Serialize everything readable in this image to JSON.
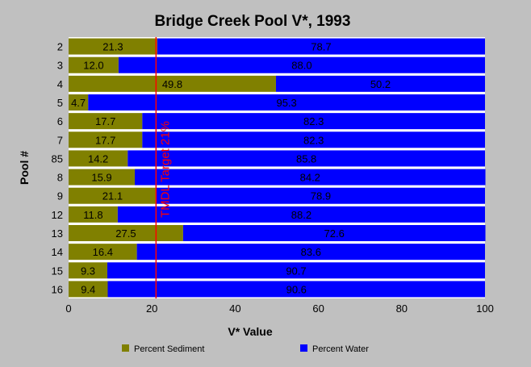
{
  "chart_data": {
    "type": "bar",
    "orientation": "horizontal",
    "stacked": true,
    "title": "Bridge Creek Pool V*, 1993",
    "xlabel": "V* Value",
    "ylabel": "Pool #",
    "xlim": [
      0,
      100
    ],
    "xticks": [
      0,
      20,
      40,
      60,
      80,
      100
    ],
    "categories": [
      "2",
      "3",
      "4",
      "5",
      "6",
      "7",
      "85",
      "8",
      "9",
      "12",
      "13",
      "14",
      "15",
      "16"
    ],
    "series": [
      {
        "name": "Percent Sediment",
        "color": "#808000",
        "values": [
          21.3,
          12.0,
          49.8,
          4.7,
          17.7,
          17.7,
          14.2,
          15.9,
          21.1,
          11.8,
          27.5,
          16.4,
          9.3,
          9.4
        ],
        "labels": [
          "21.3",
          "12.0",
          "49.8",
          "4.7",
          "17.7",
          "17.7",
          "14.2",
          "15.9",
          "21.1",
          "11.8",
          "27.5",
          "16.4",
          "9.3",
          "9.4"
        ]
      },
      {
        "name": "Percent Water",
        "color": "#0000ff",
        "values": [
          78.7,
          88.0,
          50.2,
          95.3,
          82.3,
          82.3,
          85.8,
          84.2,
          78.9,
          88.2,
          72.6,
          83.6,
          90.7,
          90.6
        ],
        "labels": [
          "78.7",
          "88.0",
          "50.2",
          "95.3",
          "82.3",
          "82.3",
          "85.8",
          "84.2",
          "78.9",
          "88.2",
          "72.6",
          "83.6",
          "90.7",
          "90.6"
        ]
      }
    ],
    "annotations": [
      {
        "type": "vline",
        "x": 21,
        "label": "TMDL Target 21%",
        "color": "#ff0000"
      }
    ],
    "legend": {
      "position": "bottom"
    },
    "grid": false,
    "colors": {
      "background": "#c0c0c0",
      "plot_background": "#ffffff",
      "separator": "#ffffff"
    }
  }
}
